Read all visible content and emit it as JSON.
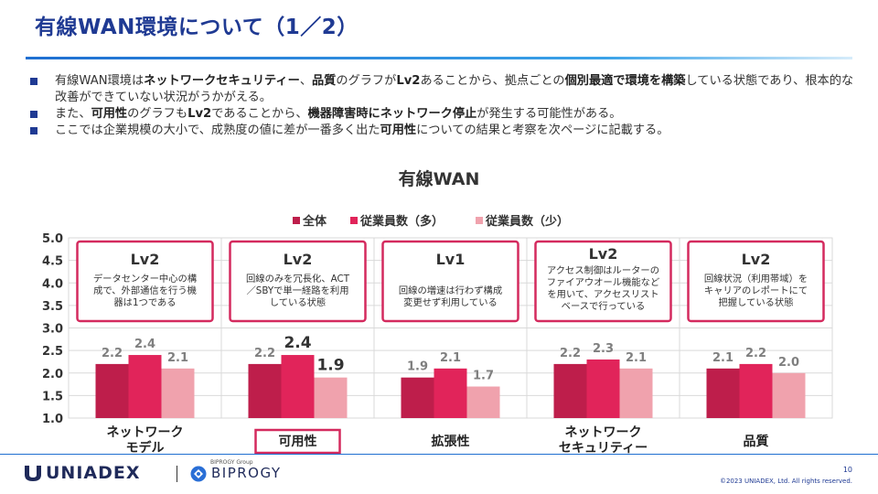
{
  "slide": {
    "title": "有線WAN環境について（1／2）",
    "bullets": [
      [
        {
          "t": "有線WAN環境は",
          "b": false
        },
        {
          "t": "ネットワークセキュリティー",
          "b": true
        },
        {
          "t": "、",
          "b": false
        },
        {
          "t": "品質",
          "b": true
        },
        {
          "t": "のグラフが",
          "b": false
        },
        {
          "t": "Lv2",
          "b": true
        },
        {
          "t": "あることから、拠点ごとの",
          "b": false
        },
        {
          "t": "個別最適で環境を構築",
          "b": true
        },
        {
          "t": "している状態であり、根本的な改善ができていない状況がうかがえる。",
          "b": false
        }
      ],
      [
        {
          "t": "また、",
          "b": false
        },
        {
          "t": "可用性",
          "b": true
        },
        {
          "t": "のグラフも",
          "b": false
        },
        {
          "t": "Lv2",
          "b": true
        },
        {
          "t": "であることから、",
          "b": false
        },
        {
          "t": "機器障害時にネットワーク停止",
          "b": true
        },
        {
          "t": "が発生する可能性がある。",
          "b": false
        }
      ],
      [
        {
          "t": "ここでは企業規模の大小で、成熟度の値に差が一番多く出た",
          "b": false
        },
        {
          "t": "可用性",
          "b": true
        },
        {
          "t": "についての結果と考察を次ページに記載する。",
          "b": false
        }
      ]
    ]
  },
  "chart_data": {
    "type": "bar",
    "title": "有線WAN",
    "categories": [
      "ネットワーク\nモデル",
      "可用性",
      "拡張性",
      "ネットワーク\nセキュリティー",
      "品質"
    ],
    "series": [
      {
        "name": "全体",
        "color": "#be1e4b",
        "values": [
          2.2,
          2.2,
          1.9,
          2.2,
          2.1
        ]
      },
      {
        "name": "従業員数（多）",
        "color": "#e1245a",
        "values": [
          2.4,
          2.4,
          2.1,
          2.3,
          2.2
        ]
      },
      {
        "name": "従業員数（少）",
        "color": "#f0a2ad",
        "values": [
          2.1,
          1.9,
          1.7,
          2.1,
          2.0
        ]
      }
    ],
    "ylim": [
      1.0,
      5.0
    ],
    "yticks": [
      "1.0",
      "1.5",
      "2.0",
      "2.5",
      "3.0",
      "3.5",
      "4.0",
      "4.5",
      "5.0"
    ],
    "legend_position": "top",
    "grid": true,
    "highlighted_category": "可用性",
    "annotations": [
      {
        "level": "Lv2",
        "text": "データセンター中心の構\n成で、外部通信を行う機\n器は1つである"
      },
      {
        "level": "Lv2",
        "text": "回線のみを冗長化、ACT\n／SBYで単一経路を利用\nしている状態"
      },
      {
        "level": "Lv1",
        "text": "回線の増速は行わず構成\n変更せず利用している"
      },
      {
        "level": "Lv2",
        "text": "アクセス制御はルーターの\nファイアウオール機能など\nを用いて、アクセスリスト\nベースで行っている"
      },
      {
        "level": "Lv2",
        "text": "回線状況（利用帯域）を\nキャリアのレポートにて\n把握している状態"
      }
    ]
  },
  "footer": {
    "logo_uniadex": "UNIADEX",
    "logo_biprogy": "BIPROGY",
    "biprogy_group": "BIPROGY Group",
    "page_number": "10",
    "copyright": "©2023 UNIADEX, Ltd. All rights reserved."
  },
  "colors": {
    "title": "#1f3a93",
    "accent_rule": "#1f6fd1",
    "box_border": "#d42a5e"
  }
}
